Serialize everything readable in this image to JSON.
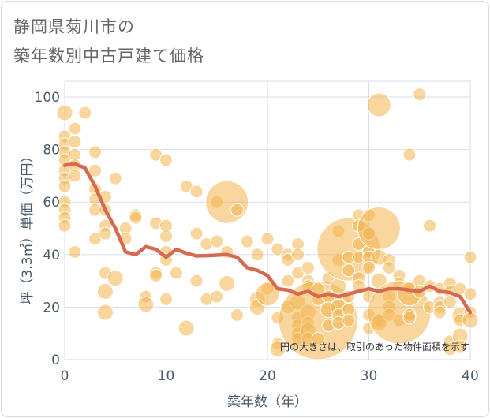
{
  "title_lines": [
    "静岡県菊川市の",
    "築年数別中古戸建て価格"
  ],
  "chart_data": {
    "type": "scatter",
    "title": "静岡県菊川市の築年数別中古戸建て価格",
    "xlabel": "築年数（年）",
    "ylabel": "坪（3.3㎡）単価（万円）",
    "xlim": [
      0,
      40
    ],
    "ylim": [
      0,
      106
    ],
    "xticks": [
      0,
      10,
      20,
      30,
      40
    ],
    "yticks": [
      0,
      20,
      40,
      60,
      80,
      100
    ],
    "grid": true,
    "annotation": "円の大きさは、取引のあった物件面積を示す",
    "colors": {
      "bubble": "#f2b44f",
      "line": "#d66a50",
      "grid": "#d4dee8"
    },
    "bubbles": [
      [
        0,
        94,
        2
      ],
      [
        0,
        85,
        1
      ],
      [
        0,
        82,
        1
      ],
      [
        0,
        79,
        1
      ],
      [
        0,
        76,
        1
      ],
      [
        0,
        72,
        1
      ],
      [
        0,
        69,
        1
      ],
      [
        0,
        66,
        1
      ],
      [
        0,
        60,
        1
      ],
      [
        0,
        57,
        1
      ],
      [
        0,
        54,
        1
      ],
      [
        0,
        51,
        1
      ],
      [
        1,
        88,
        1
      ],
      [
        1,
        83,
        1
      ],
      [
        1,
        78,
        1
      ],
      [
        1,
        74,
        1
      ],
      [
        1,
        70,
        1
      ],
      [
        1,
        41,
        1
      ],
      [
        2,
        94,
        1
      ],
      [
        3,
        79,
        1
      ],
      [
        3,
        72,
        1
      ],
      [
        3,
        65,
        1
      ],
      [
        3,
        61,
        1
      ],
      [
        3,
        57,
        1
      ],
      [
        3,
        46,
        1
      ],
      [
        4,
        62,
        1
      ],
      [
        4,
        57,
        1
      ],
      [
        4,
        51,
        1
      ],
      [
        4,
        48,
        1
      ],
      [
        4,
        33,
        1
      ],
      [
        4,
        26,
        2
      ],
      [
        4,
        18,
        2
      ],
      [
        5,
        69,
        1
      ],
      [
        5,
        31,
        2
      ],
      [
        6,
        50,
        1
      ],
      [
        6,
        46,
        1
      ],
      [
        7,
        55,
        1
      ],
      [
        7,
        54,
        1
      ],
      [
        8,
        24,
        1
      ],
      [
        8,
        21,
        2
      ],
      [
        9,
        78,
        1
      ],
      [
        9,
        52,
        1
      ],
      [
        9,
        33,
        1
      ],
      [
        9,
        32,
        1
      ],
      [
        10,
        76,
        1
      ],
      [
        10,
        51,
        1
      ],
      [
        10,
        47,
        1
      ],
      [
        10,
        41,
        1
      ],
      [
        10,
        38,
        1
      ],
      [
        10,
        23,
        1
      ],
      [
        11,
        33,
        1
      ],
      [
        12,
        66,
        1
      ],
      [
        12,
        12,
        2
      ],
      [
        13,
        64,
        1
      ],
      [
        13,
        48,
        1
      ],
      [
        13,
        30,
        1
      ],
      [
        14,
        44,
        1
      ],
      [
        14,
        23,
        1
      ],
      [
        15,
        60,
        1
      ],
      [
        15,
        45,
        1
      ],
      [
        15,
        24,
        1
      ],
      [
        16,
        60,
        5
      ],
      [
        16,
        41,
        1
      ],
      [
        16,
        29,
        2
      ],
      [
        17,
        57,
        1
      ],
      [
        17,
        17,
        1
      ],
      [
        18,
        45,
        1
      ],
      [
        19,
        40,
        1
      ],
      [
        19,
        23,
        2
      ],
      [
        19,
        20,
        2
      ],
      [
        20,
        46,
        1
      ],
      [
        20,
        27,
        1
      ],
      [
        20,
        25,
        3
      ],
      [
        21,
        16,
        1
      ],
      [
        21,
        6,
        1
      ],
      [
        21,
        4,
        2
      ],
      [
        21,
        42,
        1
      ],
      [
        22,
        40,
        1
      ],
      [
        22,
        38,
        1
      ],
      [
        22,
        30,
        1
      ],
      [
        22,
        20,
        1
      ],
      [
        23,
        44,
        1
      ],
      [
        23,
        40,
        1
      ],
      [
        23,
        33,
        1
      ],
      [
        23,
        22,
        2
      ],
      [
        23,
        16,
        1
      ],
      [
        23,
        13,
        1
      ],
      [
        23,
        10,
        1
      ],
      [
        23,
        8,
        1
      ],
      [
        24,
        35,
        1
      ],
      [
        24,
        30,
        1
      ],
      [
        24,
        28,
        1
      ],
      [
        24,
        18,
        2
      ],
      [
        24,
        14,
        1
      ],
      [
        24,
        11,
        2
      ],
      [
        24,
        8,
        1
      ],
      [
        25,
        15,
        6
      ],
      [
        25,
        27,
        1
      ],
      [
        25,
        23,
        1
      ],
      [
        25,
        8,
        1
      ],
      [
        26,
        31,
        1
      ],
      [
        26,
        24,
        1
      ],
      [
        26,
        19,
        2
      ],
      [
        26,
        13,
        1
      ],
      [
        27,
        49,
        1
      ],
      [
        27,
        38,
        1
      ],
      [
        27,
        28,
        2
      ],
      [
        27,
        20,
        2
      ],
      [
        27,
        17,
        1
      ],
      [
        27,
        14,
        1
      ],
      [
        28,
        42,
        7
      ],
      [
        28,
        39,
        1
      ],
      [
        28,
        34,
        1
      ],
      [
        28,
        24,
        1
      ],
      [
        28,
        19,
        1
      ],
      [
        28,
        15,
        1
      ],
      [
        29,
        55,
        1
      ],
      [
        29,
        51,
        1
      ],
      [
        29,
        44,
        1
      ],
      [
        29,
        39,
        1
      ],
      [
        29,
        31,
        1
      ],
      [
        29,
        28,
        1
      ],
      [
        30,
        55,
        1
      ],
      [
        30,
        48,
        1
      ],
      [
        30,
        41,
        1
      ],
      [
        30,
        39,
        1
      ],
      [
        30,
        35,
        1
      ],
      [
        30,
        24,
        1
      ],
      [
        30,
        17,
        1
      ],
      [
        30,
        12,
        1
      ],
      [
        31,
        97,
        3
      ],
      [
        31,
        50,
        5
      ],
      [
        31,
        39,
        2
      ],
      [
        31,
        30,
        2
      ],
      [
        31,
        15,
        1
      ],
      [
        31,
        14,
        2
      ],
      [
        32,
        38,
        1
      ],
      [
        32,
        35,
        1
      ],
      [
        32,
        24,
        1
      ],
      [
        32,
        20,
        1
      ],
      [
        32,
        17,
        1
      ],
      [
        33,
        32,
        1
      ],
      [
        33,
        29,
        1
      ],
      [
        33,
        15,
        1
      ],
      [
        33,
        18,
        7
      ],
      [
        34,
        78,
        1
      ],
      [
        34,
        27,
        1
      ],
      [
        34,
        17,
        1
      ],
      [
        34,
        16,
        1
      ],
      [
        34,
        25,
        3
      ],
      [
        35,
        101,
        1
      ],
      [
        35,
        30,
        1
      ],
      [
        35,
        26,
        1
      ],
      [
        36,
        51,
        1
      ],
      [
        36,
        28,
        1
      ],
      [
        36,
        20,
        1
      ],
      [
        37,
        27,
        1
      ],
      [
        37,
        22,
        1
      ],
      [
        37,
        20,
        1
      ],
      [
        37,
        18,
        1
      ],
      [
        38,
        29,
        1
      ],
      [
        38,
        26,
        1
      ],
      [
        38,
        22,
        1
      ],
      [
        38,
        7,
        1
      ],
      [
        38,
        4,
        1
      ],
      [
        39,
        27,
        1
      ],
      [
        39,
        17,
        2
      ],
      [
        39,
        15,
        1
      ],
      [
        39,
        9,
        2
      ],
      [
        39,
        5,
        1
      ],
      [
        40,
        39,
        1
      ],
      [
        40,
        25,
        1
      ],
      [
        40,
        18,
        1
      ],
      [
        40,
        15,
        2
      ]
    ],
    "line": {
      "x": [
        0,
        1,
        2,
        3,
        4,
        5,
        6,
        7,
        8,
        9,
        10,
        11,
        12,
        13,
        14,
        15,
        16,
        17,
        18,
        19,
        20,
        21,
        22,
        23,
        24,
        25,
        26,
        27,
        28,
        29,
        30,
        31,
        32,
        33,
        34,
        35,
        36,
        37,
        38,
        39,
        40
      ],
      "y": [
        74,
        74.5,
        73,
        66,
        57,
        50,
        41,
        40,
        43,
        42,
        39,
        42,
        40.5,
        39.5,
        39.6,
        39.8,
        40,
        39,
        35,
        34,
        32,
        27,
        26.5,
        25,
        26,
        24,
        25,
        24,
        25,
        26,
        27,
        26,
        27,
        27,
        26.5,
        26,
        28,
        26,
        25.5,
        24,
        18
      ]
    }
  }
}
